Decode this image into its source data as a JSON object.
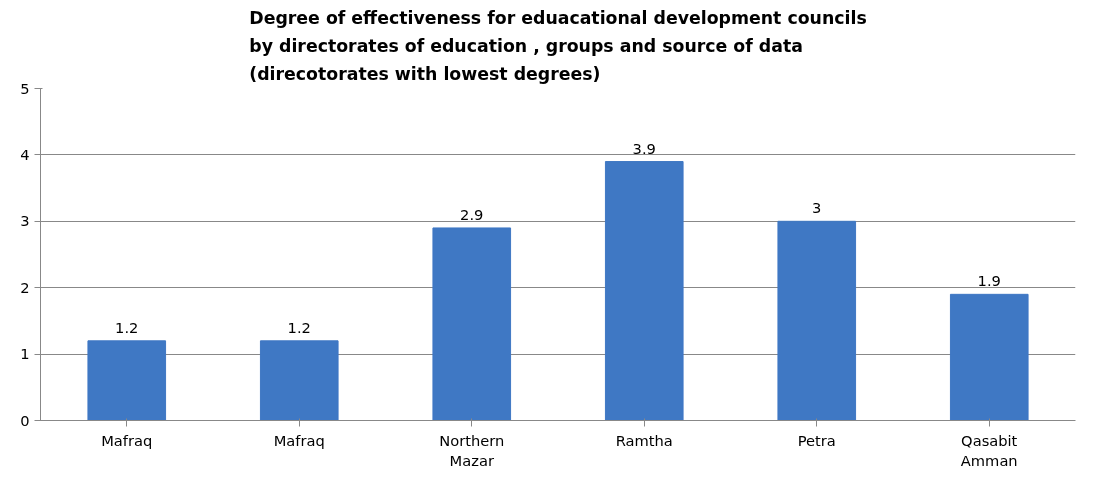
{
  "chart_data": {
    "type": "bar",
    "title": "Degree of effectiveness for eduacational development councils\nby directorates of education , groups and source of data\n(direcotorates with lowest degrees)",
    "categories": [
      "Mafraq",
      "Mafraq",
      "Northern Mazar",
      "Ramtha",
      "Petra",
      "Qasabit Amman"
    ],
    "values": [
      1.2,
      1.2,
      2.9,
      3.9,
      3,
      1.9
    ],
    "color": "#3f78c4",
    "ylim": [
      0,
      5
    ],
    "yticks": [
      0,
      1,
      2,
      3,
      4,
      5
    ],
    "grid": "y",
    "data_labels": true
  }
}
